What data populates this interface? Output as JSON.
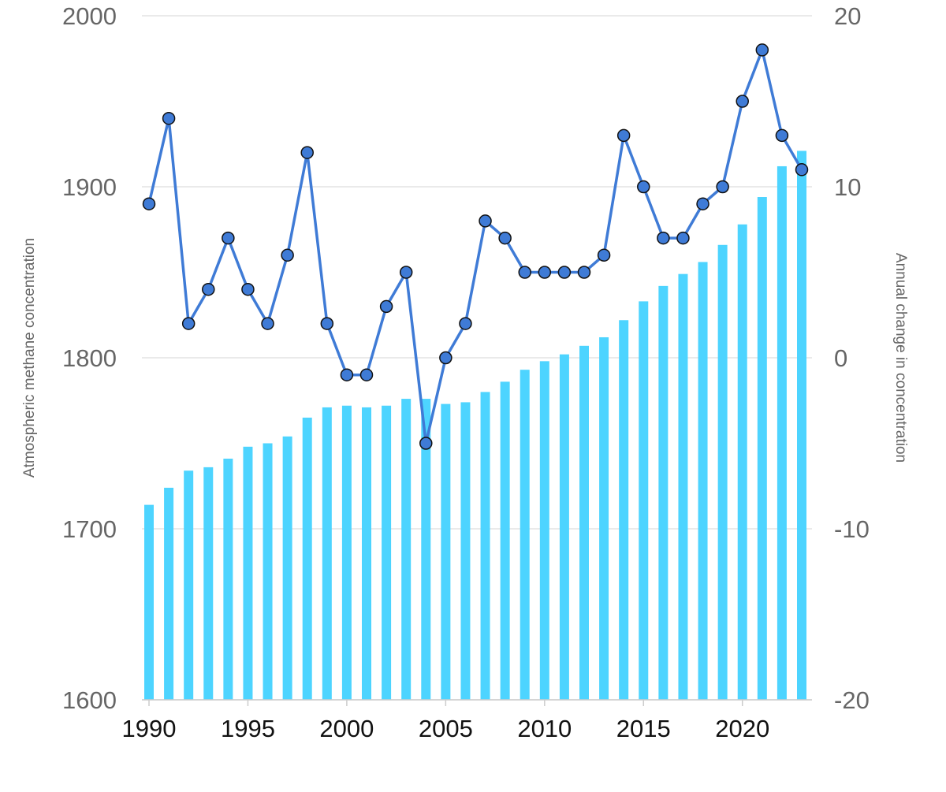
{
  "chart_data": {
    "type": "bar+line",
    "x": [
      1990,
      1991,
      1992,
      1993,
      1994,
      1995,
      1996,
      1997,
      1998,
      1999,
      2000,
      2001,
      2002,
      2003,
      2004,
      2005,
      2006,
      2007,
      2008,
      2009,
      2010,
      2011,
      2012,
      2013,
      2014,
      2015,
      2016,
      2017,
      2018,
      2019,
      2020,
      2021,
      2022,
      2023
    ],
    "series": [
      {
        "name": "Atmospheric methane concentration",
        "type": "bar",
        "axis": "left",
        "color": "#4dd4ff",
        "values": [
          1714,
          1724,
          1734,
          1736,
          1741,
          1748,
          1750,
          1754,
          1765,
          1771,
          1772,
          1771,
          1772,
          1776,
          1776,
          1773,
          1774,
          1780,
          1786,
          1793,
          1798,
          1802,
          1807,
          1812,
          1822,
          1833,
          1842,
          1849,
          1856,
          1866,
          1878,
          1894,
          1912,
          1921
        ]
      },
      {
        "name": "Annual change in concentration",
        "type": "line",
        "axis": "right",
        "color": "#3f7bd6",
        "values": [
          9,
          14,
          2,
          4,
          7,
          4,
          2,
          6,
          12,
          2,
          -1,
          -1,
          3,
          5,
          -5,
          0,
          2,
          8,
          7,
          5,
          5,
          5,
          5,
          6,
          13,
          10,
          7,
          7,
          9,
          10,
          15,
          18,
          13,
          11
        ]
      }
    ],
    "ylabel": "Atmospheric methane concentration",
    "y2label": "Annual change in concentration",
    "ylim": [
      1600,
      2000
    ],
    "y2lim": [
      -20,
      20
    ],
    "yticks": [
      "1600",
      "1700",
      "1800",
      "1900",
      "2000"
    ],
    "y2ticks": [
      "-20",
      "-10",
      "0",
      "10",
      "20"
    ],
    "xticks": [
      "1990",
      "1995",
      "2000",
      "2005",
      "2010",
      "2015",
      "2020"
    ],
    "grid": true
  }
}
